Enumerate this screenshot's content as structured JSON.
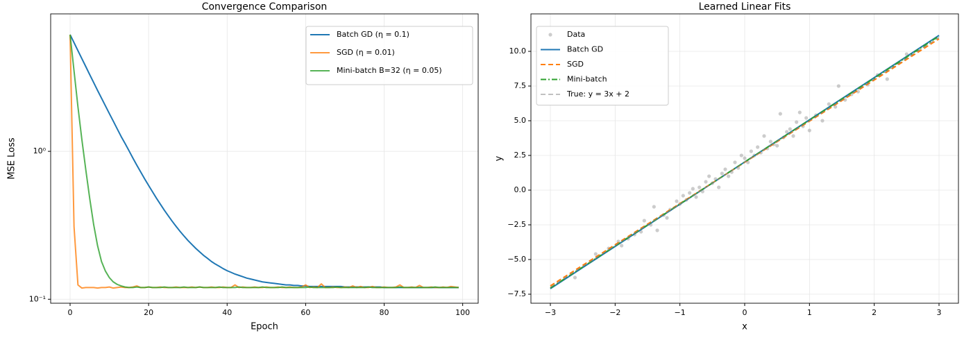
{
  "chart_data": [
    {
      "type": "line",
      "title": "Convergence Comparison",
      "x_label": "Epoch",
      "y_label": "MSE Loss",
      "log_y": true,
      "grid": true,
      "legend": "upper right",
      "x": [
        0,
        1,
        2,
        3,
        4,
        5,
        6,
        7,
        8,
        9,
        10,
        11,
        12,
        13,
        14,
        15,
        16,
        17,
        18,
        19,
        20,
        21,
        22,
        23,
        24,
        25,
        26,
        27,
        28,
        29,
        30,
        31,
        32,
        33,
        34,
        35,
        36,
        37,
        38,
        39,
        40,
        41,
        42,
        43,
        44,
        45,
        46,
        47,
        48,
        49,
        50,
        51,
        52,
        53,
        54,
        55,
        56,
        57,
        58,
        59,
        60,
        61,
        62,
        63,
        64,
        65,
        66,
        67,
        68,
        69,
        70,
        71,
        72,
        73,
        74,
        75,
        76,
        77,
        78,
        79,
        80,
        81,
        82,
        83,
        84,
        85,
        86,
        87,
        88,
        89,
        90,
        91,
        92,
        93,
        94,
        95,
        96,
        97,
        98,
        99
      ],
      "xlim": [
        -4.95,
        103.95
      ],
      "xticks": [
        0,
        20,
        40,
        60,
        80,
        100
      ],
      "ylim": [
        0.094,
        8.5
      ],
      "yticks": [
        {
          "value": 0.1,
          "label": "10⁻¹"
        },
        {
          "value": 1,
          "label": "10⁰"
        }
      ],
      "series": [
        {
          "name": "Batch GD (η = 0.1)",
          "color": "#1f77b4",
          "opacity": 1,
          "linewidth": 2,
          "values": [
            6.15,
            5.43,
            4.79,
            4.23,
            3.74,
            3.3,
            2.92,
            2.58,
            2.29,
            2.03,
            1.8,
            1.6,
            1.42,
            1.26,
            1.13,
            1.01,
            0.9,
            0.806,
            0.724,
            0.651,
            0.588,
            0.532,
            0.482,
            0.439,
            0.4,
            0.367,
            0.337,
            0.311,
            0.288,
            0.268,
            0.25,
            0.235,
            0.221,
            0.209,
            0.198,
            0.189,
            0.18,
            0.173,
            0.167,
            0.161,
            0.156,
            0.152,
            0.148,
            0.145,
            0.142,
            0.139,
            0.137,
            0.135,
            0.133,
            0.131,
            0.13,
            0.129,
            0.128,
            0.127,
            0.126,
            0.125,
            0.125,
            0.124,
            0.124,
            0.123,
            0.123,
            0.122,
            0.122,
            0.122,
            0.122,
            0.122,
            0.122,
            0.122,
            0.122,
            0.122,
            0.121,
            0.121,
            0.121,
            0.121,
            0.121,
            0.121,
            0.121,
            0.121,
            0.121,
            0.121,
            0.12,
            0.12,
            0.12,
            0.12,
            0.12,
            0.12,
            0.12,
            0.12,
            0.12,
            0.12,
            0.12,
            0.12,
            0.12,
            0.12,
            0.12,
            0.12,
            0.12,
            0.12,
            0.12,
            0.12
          ]
        },
        {
          "name": "SGD (η = 0.01)",
          "color": "#ff7f0e",
          "opacity": 0.8,
          "linewidth": 2,
          "values": [
            6.15,
            0.31,
            0.125,
            0.119,
            0.12,
            0.12,
            0.12,
            0.119,
            0.12,
            0.12,
            0.121,
            0.119,
            0.12,
            0.121,
            0.12,
            0.12,
            0.121,
            0.123,
            0.12,
            0.12,
            0.121,
            0.12,
            0.12,
            0.121,
            0.12,
            0.12,
            0.12,
            0.121,
            0.12,
            0.12,
            0.12,
            0.121,
            0.12,
            0.121,
            0.12,
            0.12,
            0.121,
            0.12,
            0.12,
            0.121,
            0.12,
            0.12,
            0.125,
            0.12,
            0.121,
            0.12,
            0.12,
            0.121,
            0.12,
            0.12,
            0.121,
            0.12,
            0.12,
            0.121,
            0.12,
            0.12,
            0.121,
            0.12,
            0.12,
            0.121,
            0.125,
            0.12,
            0.121,
            0.12,
            0.127,
            0.12,
            0.12,
            0.121,
            0.12,
            0.12,
            0.121,
            0.12,
            0.123,
            0.12,
            0.122,
            0.12,
            0.12,
            0.122,
            0.12,
            0.12,
            0.121,
            0.12,
            0.12,
            0.121,
            0.125,
            0.12,
            0.12,
            0.121,
            0.12,
            0.124,
            0.12,
            0.12,
            0.121,
            0.12,
            0.12,
            0.121,
            0.12,
            0.122,
            0.121,
            0.12
          ]
        },
        {
          "name": "Mini-batch B=32 (η = 0.05)",
          "color": "#2ca02c",
          "opacity": 0.8,
          "linewidth": 2,
          "values": [
            6.15,
            3.5,
            2.0,
            1.2,
            0.75,
            0.48,
            0.32,
            0.23,
            0.18,
            0.155,
            0.14,
            0.131,
            0.126,
            0.123,
            0.121,
            0.12,
            0.12,
            0.121,
            0.12,
            0.12,
            0.121,
            0.12,
            0.12,
            0.12,
            0.121,
            0.12,
            0.12,
            0.12,
            0.12,
            0.121,
            0.12,
            0.12,
            0.12,
            0.121,
            0.12,
            0.12,
            0.12,
            0.12,
            0.121,
            0.12,
            0.12,
            0.12,
            0.12,
            0.121,
            0.12,
            0.12,
            0.12,
            0.12,
            0.12,
            0.121,
            0.12,
            0.12,
            0.12,
            0.12,
            0.121,
            0.12,
            0.12,
            0.12,
            0.12,
            0.12,
            0.12,
            0.121,
            0.12,
            0.12,
            0.12,
            0.12,
            0.12,
            0.12,
            0.121,
            0.12,
            0.12,
            0.12,
            0.12,
            0.12,
            0.12,
            0.12,
            0.121,
            0.12,
            0.12,
            0.12,
            0.12,
            0.12,
            0.12,
            0.12,
            0.121,
            0.12,
            0.12,
            0.12,
            0.12,
            0.12,
            0.12,
            0.12,
            0.12,
            0.121,
            0.12,
            0.12,
            0.12,
            0.12,
            0.12,
            0.12
          ]
        }
      ]
    },
    {
      "type": "scatter",
      "title": "Learned Linear Fits",
      "x_label": "x",
      "y_label": "y",
      "log_y": false,
      "grid": true,
      "legend": "upper left",
      "xlim": [
        -3.3,
        3.3
      ],
      "xticks": [
        {
          "value": -3,
          "label": "−3"
        },
        {
          "value": -2,
          "label": "−2"
        },
        {
          "value": -1,
          "label": "−1"
        },
        0,
        1,
        2,
        3
      ],
      "ylim": [
        -8.15,
        12.7
      ],
      "yticks": [
        {
          "value": -7.5,
          "label": "−7.5"
        },
        {
          "value": -5,
          "label": "−5.0"
        },
        {
          "value": -2.5,
          "label": "−2.5"
        },
        {
          "value": 0,
          "label": "0.0"
        },
        2.5,
        {
          "value": 5,
          "label": "5.0"
        },
        7.5,
        {
          "value": 10,
          "label": "10.0"
        }
      ],
      "points": {
        "name": "Data",
        "color": "#999999",
        "x": [
          -2.62,
          -2.3,
          -2.1,
          -1.95,
          -1.9,
          -1.8,
          -1.7,
          -1.6,
          -1.55,
          -1.45,
          -1.4,
          -1.35,
          -1.25,
          -1.2,
          -1.15,
          -1.05,
          -1.0,
          -0.95,
          -0.9,
          -0.85,
          -0.8,
          -0.75,
          -0.7,
          -0.65,
          -0.6,
          -0.55,
          -0.5,
          -0.45,
          -0.4,
          -0.35,
          -0.3,
          -0.25,
          -0.2,
          -0.15,
          -0.1,
          -0.05,
          0.0,
          0.05,
          0.1,
          0.15,
          0.2,
          0.25,
          0.3,
          0.35,
          0.4,
          0.45,
          0.5,
          0.55,
          0.6,
          0.65,
          0.7,
          0.75,
          0.8,
          0.85,
          0.9,
          0.95,
          1.0,
          1.1,
          1.2,
          1.3,
          1.4,
          1.45,
          1.55,
          1.65,
          1.75,
          1.9,
          2.05,
          2.2,
          2.5
        ],
        "values": [
          -6.3,
          -4.6,
          -4.2,
          -3.7,
          -4.0,
          -3.5,
          -3.2,
          -3.0,
          -2.2,
          -2.5,
          -1.2,
          -2.9,
          -1.8,
          -2.0,
          -1.4,
          -0.8,
          -1.0,
          -0.4,
          -0.7,
          -0.2,
          0.1,
          -0.5,
          0.2,
          -0.1,
          0.6,
          1.0,
          0.5,
          0.8,
          0.2,
          1.2,
          1.5,
          1.0,
          1.3,
          2.0,
          1.6,
          2.5,
          2.3,
          2.0,
          2.8,
          2.5,
          3.1,
          2.7,
          3.9,
          3.0,
          3.5,
          3.3,
          3.2,
          5.5,
          3.8,
          4.2,
          4.4,
          3.9,
          4.9,
          5.6,
          4.6,
          5.2,
          4.3,
          5.4,
          5.0,
          6.2,
          6.0,
          7.5,
          6.5,
          6.9,
          7.1,
          7.6,
          8.3,
          8.0,
          9.8
        ]
      },
      "series": [
        {
          "name": "Batch GD",
          "color": "#1f77b4",
          "linestyle": "solid",
          "linewidth": 2,
          "x": [
            -3,
            3
          ],
          "values": [
            -7.1,
            11.15
          ]
        },
        {
          "name": "SGD",
          "color": "#ff7f0e",
          "linestyle": "dashed",
          "linewidth": 2,
          "x": [
            -3,
            3
          ],
          "values": [
            -6.9,
            10.9
          ]
        },
        {
          "name": "Mini-batch",
          "color": "#2ca02c",
          "linestyle": "dashdot",
          "linewidth": 2,
          "x": [
            -3,
            3
          ],
          "values": [
            -7.05,
            11.1
          ]
        },
        {
          "name": "True: y = 3x + 2",
          "color": "#808080",
          "linestyle": "dashed",
          "linewidth": 1,
          "x": [
            -3,
            3
          ],
          "values": [
            -7,
            11
          ]
        }
      ]
    }
  ]
}
